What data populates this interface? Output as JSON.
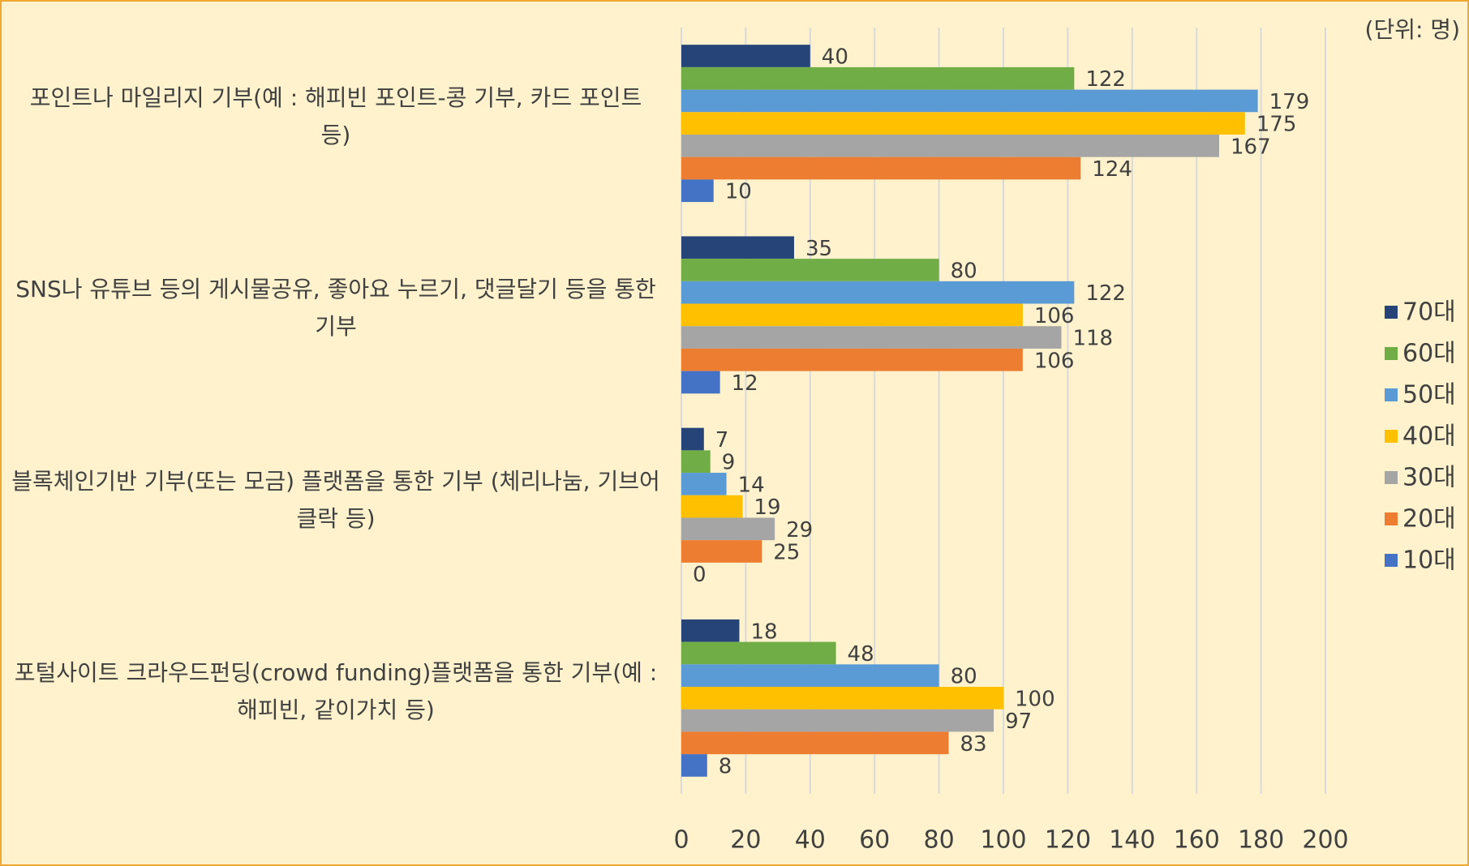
{
  "chart_data": {
    "type": "barh",
    "annotation": "(단위: 명)",
    "categories": [
      "포인트나 마일리지 기부(예 : 해피빈 포인트-콩 기부, 카드 포인트 등)",
      "SNS나 유튜브 등의 게시물공유, 좋아요 누르기, 댓글달기 등을 통한 기부",
      "블록체인기반 기부(또는 모금) 플랫폼을 통한 기부 (체리나눔, 기브어클락 등)",
      "포털사이트 크라우드펀딩(crowd funding)플랫폼을 통한 기부(예 : 해피빈, 같이가치 등)"
    ],
    "series": [
      {
        "name": "70대",
        "color": "#264478",
        "values": [
          40,
          35,
          7,
          18
        ]
      },
      {
        "name": "60대",
        "color": "#70ad47",
        "values": [
          122,
          80,
          9,
          48
        ]
      },
      {
        "name": "50대",
        "color": "#5b9bd5",
        "values": [
          179,
          122,
          14,
          80
        ]
      },
      {
        "name": "40대",
        "color": "#ffc000",
        "values": [
          175,
          106,
          19,
          100
        ]
      },
      {
        "name": "30대",
        "color": "#a5a5a5",
        "values": [
          167,
          118,
          29,
          97
        ]
      },
      {
        "name": "20대",
        "color": "#ed7d31",
        "values": [
          124,
          106,
          25,
          83
        ]
      },
      {
        "name": "10대",
        "color": "#4472c4",
        "values": [
          10,
          12,
          0,
          8
        ]
      }
    ],
    "xlim": [
      0,
      200
    ],
    "xticks": [
      0,
      20,
      40,
      60,
      80,
      100,
      120,
      140,
      160,
      180,
      200
    ],
    "grid": true,
    "legend": "right"
  }
}
